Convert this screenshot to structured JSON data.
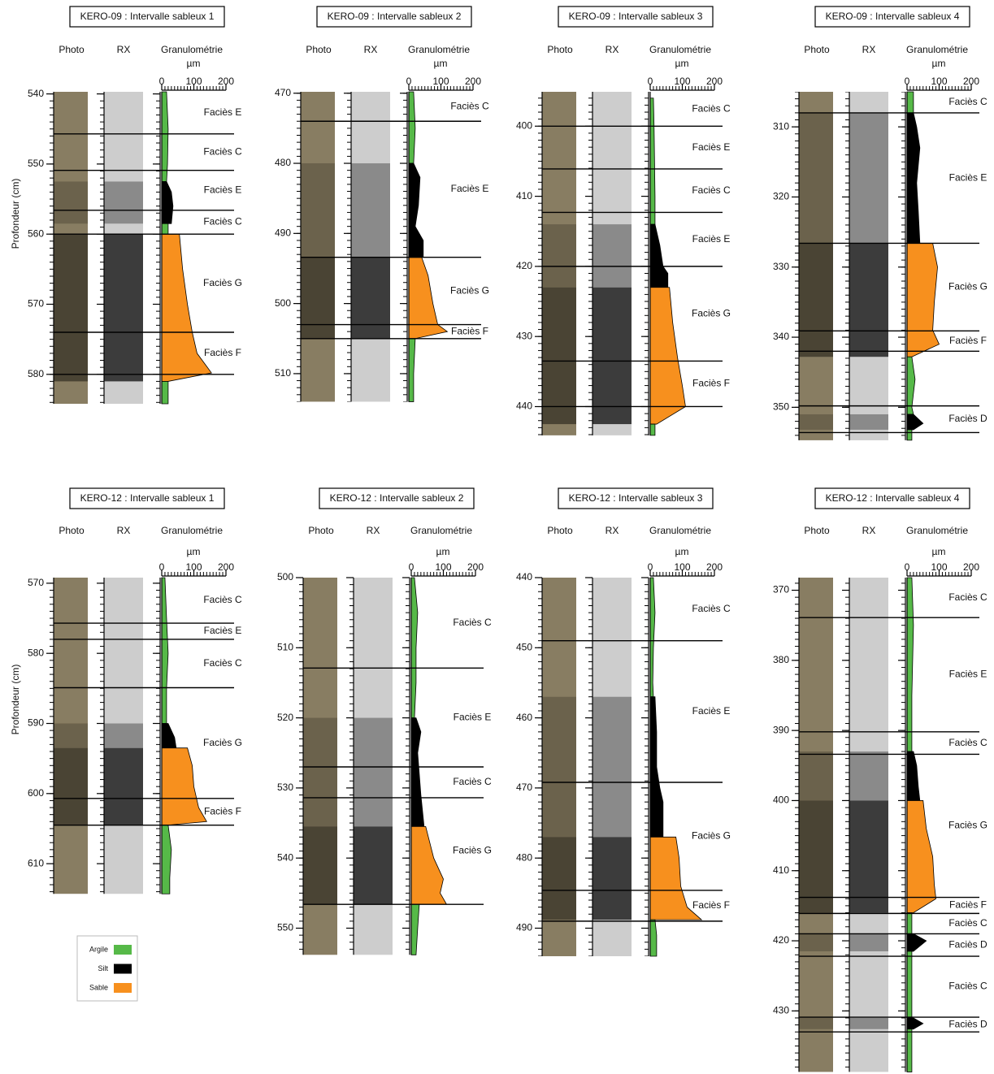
{
  "depth_axis_label": "Profondeur (cm)",
  "column_labels": {
    "photo": "Photo",
    "rx": "RX",
    "granulometry": "Granulométrie",
    "unit": "µm"
  },
  "legend": [
    {
      "name": "Argile",
      "color": "#56b948"
    },
    {
      "name": "Silt",
      "color": "#000000"
    },
    {
      "name": "Sable",
      "color": "#f7901e"
    }
  ],
  "grain_lim": [
    0,
    200
  ],
  "grain_ticks": [
    0,
    100,
    200
  ],
  "panels": [
    {
      "title": "KERO-09 : Intervalle sableux 1",
      "depth_range": [
        539.7,
        584.2
      ],
      "depth_ticks": [
        540,
        550,
        560,
        570,
        580
      ],
      "facies": [
        {
          "label": "Faciès E",
          "top": 539.7,
          "bottom": 545.7
        },
        {
          "label": "Faciès C",
          "top": 545.7,
          "bottom": 550.9
        },
        {
          "label": "Faciès E",
          "top": 550.9,
          "bottom": 556.6
        },
        {
          "label": "Faciès C",
          "top": 556.6,
          "bottom": 560
        },
        {
          "label": "Faciès G",
          "top": 560,
          "bottom": 574
        },
        {
          "label": "Faciès F",
          "top": 574,
          "bottom": 580
        }
      ],
      "profile": [
        {
          "sediment": "Argile",
          "depth": [
            539.7,
            545,
            550,
            552.5
          ],
          "size": [
            15,
            20,
            18,
            15
          ]
        },
        {
          "sediment": "Silt",
          "depth": [
            552.5,
            554,
            556,
            558.5
          ],
          "size": [
            15,
            30,
            35,
            30
          ]
        },
        {
          "sediment": "Argile",
          "depth": [
            558.5,
            560
          ],
          "size": [
            20,
            20
          ]
        },
        {
          "sediment": "Sable",
          "depth": [
            560,
            565,
            570,
            574,
            577,
            579.8,
            581
          ],
          "size": [
            55,
            65,
            80,
            95,
            110,
            155,
            20
          ]
        },
        {
          "sediment": "Argile",
          "depth": [
            581,
            584.2
          ],
          "size": [
            20,
            20
          ]
        }
      ]
    },
    {
      "title": "KERO-09 : Intervalle sableux 2",
      "depth_range": [
        469.8,
        514
      ],
      "depth_ticks": [
        470,
        480,
        490,
        500,
        510
      ],
      "facies": [
        {
          "label": "Faciès C",
          "top": 469.8,
          "bottom": 474
        },
        {
          "label": "Faciès E",
          "top": 474,
          "bottom": 493.4
        },
        {
          "label": "Faciès G",
          "top": 493.4,
          "bottom": 503
        },
        {
          "label": "Faciès F",
          "top": 503,
          "bottom": 505
        }
      ],
      "profile": [
        {
          "sediment": "Argile",
          "depth": [
            469.8,
            475,
            480
          ],
          "size": [
            15,
            20,
            15
          ]
        },
        {
          "sediment": "Silt",
          "depth": [
            480,
            482,
            486,
            489,
            491,
            493.4
          ],
          "size": [
            15,
            35,
            30,
            20,
            45,
            45
          ]
        },
        {
          "sediment": "Sable",
          "depth": [
            493.4,
            496,
            500,
            503,
            504,
            505
          ],
          "size": [
            40,
            60,
            75,
            90,
            120,
            20
          ]
        },
        {
          "sediment": "Argile",
          "depth": [
            505,
            510,
            514
          ],
          "size": [
            20,
            15,
            15
          ]
        }
      ]
    },
    {
      "title": "KERO-09 : Intervalle sableux 3",
      "depth_range": [
        395.1,
        444.1
      ],
      "depth_ticks": [
        400,
        410,
        420,
        430,
        440
      ],
      "facies": [
        {
          "label": "Faciès C",
          "top": 395.1,
          "bottom": 400
        },
        {
          "label": "Faciès E",
          "top": 400,
          "bottom": 406.1
        },
        {
          "label": "Faciès C",
          "top": 406.1,
          "bottom": 412.3
        },
        {
          "label": "Faciès E",
          "top": 412.3,
          "bottom": 420
        },
        {
          "label": "Faciès G",
          "top": 420,
          "bottom": 433.5
        },
        {
          "label": "Faciès F",
          "top": 433.5,
          "bottom": 440
        }
      ],
      "profile": [
        {
          "sediment": "Argile",
          "depth": [
            396,
            400,
            410,
            414
          ],
          "size": [
            10,
            12,
            15,
            15
          ]
        },
        {
          "sediment": "Silt",
          "depth": [
            414,
            417,
            420,
            421,
            423
          ],
          "size": [
            15,
            30,
            40,
            55,
            55
          ]
        },
        {
          "sediment": "Sable",
          "depth": [
            423,
            428,
            433,
            437,
            440,
            442.5
          ],
          "size": [
            60,
            70,
            85,
            100,
            110,
            20
          ]
        },
        {
          "sediment": "Argile",
          "depth": [
            442.5,
            444.1
          ],
          "size": [
            15,
            15
          ]
        }
      ]
    },
    {
      "title": "KERO-09 : Intervalle sableux 4",
      "depth_range": [
        305,
        354.7
      ],
      "depth_ticks": [
        310,
        320,
        330,
        340,
        350
      ],
      "facies": [
        {
          "label": "Faciès C",
          "top": 305,
          "bottom": 308
        },
        {
          "label": "Faciès E",
          "top": 308,
          "bottom": 326.6
        },
        {
          "label": "Faciès G",
          "top": 326.6,
          "bottom": 339.1
        },
        {
          "label": "Faciès F",
          "top": 339.1,
          "bottom": 342
        },
        {
          "label": "Faciès D",
          "top": 349.8,
          "bottom": 353.6
        }
      ],
      "profile": [
        {
          "sediment": "Argile",
          "depth": [
            305,
            308
          ],
          "size": [
            20,
            20
          ]
        },
        {
          "sediment": "Silt",
          "depth": [
            308,
            310,
            313,
            318,
            322,
            326.6
          ],
          "size": [
            20,
            30,
            40,
            30,
            35,
            40
          ]
        },
        {
          "sediment": "Sable",
          "depth": [
            326.6,
            330,
            335,
            339,
            341,
            342.8
          ],
          "size": [
            80,
            95,
            85,
            80,
            100,
            15
          ]
        },
        {
          "sediment": "Argile",
          "depth": [
            342.8,
            346,
            350,
            351
          ],
          "size": [
            15,
            25,
            15,
            20
          ]
        },
        {
          "sediment": "Silt",
          "depth": [
            351,
            352.3,
            353.2
          ],
          "size": [
            20,
            50,
            20
          ]
        },
        {
          "sediment": "Argile",
          "depth": [
            353.2,
            354.7
          ],
          "size": [
            15,
            15
          ]
        }
      ]
    },
    {
      "title": "KERO-12 : Intervalle sableux 1",
      "depth_range": [
        569.2,
        614.3
      ],
      "depth_ticks": [
        570,
        580,
        590,
        600,
        610
      ],
      "facies": [
        {
          "label": "Faciès C",
          "top": 569.2,
          "bottom": 575.7
        },
        {
          "label": "Faciès E",
          "top": 575.7,
          "bottom": 578
        },
        {
          "label": "Faciès C",
          "top": 578,
          "bottom": 584.9
        },
        {
          "label": "Faciès G",
          "top": 584.9,
          "bottom": 600.7
        },
        {
          "label": "Faciès F",
          "top": 600.7,
          "bottom": 604.5
        }
      ],
      "profile": [
        {
          "sediment": "Argile",
          "depth": [
            569.2,
            575,
            580,
            585,
            590
          ],
          "size": [
            10,
            15,
            20,
            15,
            15
          ]
        },
        {
          "sediment": "Silt",
          "depth": [
            590,
            592,
            593.5
          ],
          "size": [
            20,
            40,
            45
          ]
        },
        {
          "sediment": "Sable",
          "depth": [
            593.5,
            596,
            599,
            602,
            604,
            604.5
          ],
          "size": [
            80,
            95,
            100,
            115,
            140,
            20
          ]
        },
        {
          "sediment": "Argile",
          "depth": [
            604.5,
            608,
            612,
            614.3
          ],
          "size": [
            20,
            30,
            25,
            25
          ]
        }
      ]
    },
    {
      "title": "KERO-12 : Intervalle sableux 2",
      "depth_range": [
        500,
        553.8
      ],
      "depth_ticks": [
        500,
        510,
        520,
        530,
        540,
        550
      ],
      "facies": [
        {
          "label": "Faciès C",
          "top": 500,
          "bottom": 512.9
        },
        {
          "label": "Faciès E",
          "top": 512.9,
          "bottom": 527
        },
        {
          "label": "Faciès C",
          "top": 527,
          "bottom": 531.4
        },
        {
          "label": "Faciès G",
          "top": 531.4,
          "bottom": 546.6
        }
      ],
      "profile": [
        {
          "sediment": "Argile",
          "depth": [
            500,
            505,
            510,
            515,
            520
          ],
          "size": [
            10,
            20,
            15,
            15,
            10
          ]
        },
        {
          "sediment": "Silt",
          "depth": [
            520,
            522,
            525,
            528,
            531,
            535.5
          ],
          "size": [
            15,
            30,
            20,
            25,
            30,
            40
          ]
        },
        {
          "sediment": "Sable",
          "depth": [
            535.5,
            540,
            543,
            545,
            546.6
          ],
          "size": [
            45,
            70,
            100,
            90,
            110
          ]
        },
        {
          "sediment": "Argile",
          "depth": [
            546.6,
            550,
            553.8
          ],
          "size": [
            25,
            20,
            15
          ]
        }
      ]
    },
    {
      "title": "KERO-12 : Intervalle sableux 3",
      "depth_range": [
        440,
        494
      ],
      "depth_ticks": [
        440,
        450,
        460,
        470,
        480,
        490
      ],
      "facies": [
        {
          "label": "Faciès C",
          "top": 440,
          "bottom": 449
        },
        {
          "label": "Faciès E",
          "top": 449,
          "bottom": 469.2
        },
        {
          "label": "Faciès G",
          "top": 469.2,
          "bottom": 484.6
        },
        {
          "label": "Faciès F",
          "top": 484.6,
          "bottom": 489
        }
      ],
      "profile": [
        {
          "sediment": "Argile",
          "depth": [
            440,
            445,
            450,
            455,
            457
          ],
          "size": [
            10,
            15,
            10,
            8,
            10
          ]
        },
        {
          "sediment": "Silt",
          "depth": [
            457,
            462,
            467,
            470,
            472,
            477
          ],
          "size": [
            15,
            20,
            20,
            30,
            40,
            40
          ]
        },
        {
          "sediment": "Sable",
          "depth": [
            477,
            480,
            484,
            487,
            488.8
          ],
          "size": [
            80,
            90,
            95,
            115,
            160
          ]
        },
        {
          "sediment": "Argile",
          "depth": [
            488.8,
            491,
            494
          ],
          "size": [
            15,
            20,
            20
          ]
        }
      ]
    },
    {
      "title": "KERO-12 : Intervalle sableux 4",
      "depth_range": [
        368.2,
        438.7
      ],
      "depth_ticks": [
        370,
        380,
        390,
        400,
        410,
        420,
        430
      ],
      "facies": [
        {
          "label": "Faciès C",
          "top": 368.2,
          "bottom": 373.9
        },
        {
          "label": "Faciès E",
          "top": 373.9,
          "bottom": 390.2
        },
        {
          "label": "Faciès C",
          "top": 390.2,
          "bottom": 393.4
        },
        {
          "label": "Faciès G",
          "top": 393.4,
          "bottom": 413.8
        },
        {
          "label": "Faciès F",
          "top": 413.8,
          "bottom": 416.1
        },
        {
          "label": "Faciès C",
          "top": 416.1,
          "bottom": 419
        },
        {
          "label": "Faciès D",
          "top": 419,
          "bottom": 422.2
        },
        {
          "label": "Faciès C",
          "top": 422.2,
          "bottom": 430.9
        },
        {
          "label": "Faciès D",
          "top": 430.9,
          "bottom": 433
        }
      ],
      "profile": [
        {
          "sediment": "Argile",
          "depth": [
            368.2,
            375,
            385,
            393
          ],
          "size": [
            15,
            20,
            15,
            15
          ]
        },
        {
          "sediment": "Silt",
          "depth": [
            393,
            395,
            398,
            400
          ],
          "size": [
            20,
            30,
            35,
            40
          ]
        },
        {
          "sediment": "Sable",
          "depth": [
            400,
            404,
            408,
            412,
            414,
            416
          ],
          "size": [
            50,
            60,
            80,
            85,
            90,
            20
          ]
        },
        {
          "sediment": "Argile",
          "depth": [
            416,
            419
          ],
          "size": [
            15,
            15
          ]
        },
        {
          "sediment": "Silt",
          "depth": [
            419,
            420,
            421.5
          ],
          "size": [
            20,
            60,
            20
          ]
        },
        {
          "sediment": "Argile",
          "depth": [
            421.5,
            431
          ],
          "size": [
            15,
            15
          ]
        },
        {
          "sediment": "Silt",
          "depth": [
            431,
            431.8,
            432.6
          ],
          "size": [
            20,
            50,
            20
          ]
        },
        {
          "sediment": "Argile",
          "depth": [
            432.6,
            438.7
          ],
          "size": [
            15,
            15
          ]
        }
      ]
    }
  ]
}
